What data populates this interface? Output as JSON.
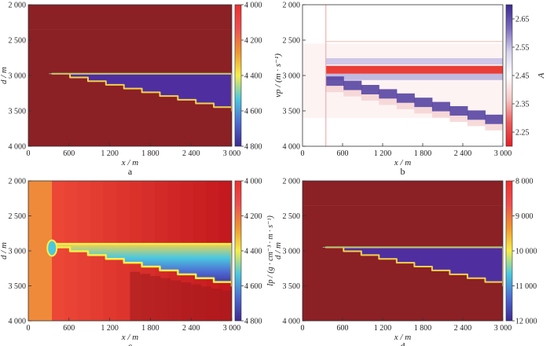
{
  "chart_data": [
    {
      "type": "heatmap",
      "panel_label": "a",
      "xlabel": "x / m",
      "ylabel": "d / m",
      "colorbar_label": "",
      "xlim": [
        0,
        3000
      ],
      "ylim": [
        4000,
        2000
      ],
      "x_ticks": [
        "600",
        "1 200",
        "1 800",
        "2 400",
        "3 000"
      ],
      "x_tick_values": [
        600,
        1200,
        1800,
        2400,
        3000
      ],
      "y_ticks": [
        "2 000",
        "2 500",
        "3 000",
        "3 500",
        "4 000"
      ],
      "y_tick_values": [
        2000,
        2500,
        3000,
        3500,
        4000
      ],
      "colorbar_ticks": [
        "4 000",
        "4 200",
        "4 400",
        "4 600",
        "4 800"
      ],
      "colorbar_range": [
        4000,
        4800
      ],
      "colormap": [
        "#ef2f2f",
        "#ef4f4f",
        "#f0962f",
        "#f7ee48",
        "#4bc8e0",
        "#4d6bd2",
        "#3d2a91"
      ],
      "background_color": "#8b2025",
      "wedge_color": "#4f2fa0",
      "wedge_top_depth": 2975,
      "wedge_start_x": 350,
      "wedge_end_x": 3000,
      "wedge_bottom_end_depth": 3500,
      "step_count": 10
    },
    {
      "type": "heatmap",
      "panel_label": "b",
      "xlabel": "x / m",
      "ylabel": "vp / (m · s⁻¹)",
      "colorbar_label": "A",
      "xlim": [
        0,
        3000
      ],
      "ylim": [
        4000,
        2000
      ],
      "x_ticks": [
        "600",
        "1 200",
        "1 800",
        "2 400",
        "3 000"
      ],
      "x_tick_values": [
        600,
        1200,
        1800,
        2400,
        3000
      ],
      "y_ticks": [
        "2 000",
        "2 500",
        "3 000",
        "3 500",
        "4 000"
      ],
      "y_tick_values": [
        2000,
        2500,
        3000,
        3500,
        4000
      ],
      "colorbar_ticks": [
        "2.65",
        "2.55",
        "2.45",
        "2.35",
        "2.25"
      ],
      "colorbar_tick_values": [
        2.65,
        2.55,
        2.45,
        2.35,
        2.25
      ],
      "colorbar_range": [
        2.2,
        2.7
      ],
      "colormap": [
        "#3d2a91",
        "#7a6bbd",
        "#d8d4ee",
        "#ffffff",
        "#f7c9c9",
        "#ef5a5a",
        "#e31f26"
      ],
      "background_color": "#ffffff",
      "wedge_top_depth": 2900,
      "wedge_start_x": 350,
      "wedge_end_x": 3000,
      "wedge_bottom_end_depth": 3500,
      "step_count": 10
    },
    {
      "type": "heatmap",
      "panel_label": "c",
      "xlabel": "x / m",
      "ylabel": "d / m",
      "colorbar_label": "Ip / (g · cm⁻³ · m · s⁻¹)",
      "xlim": [
        0,
        3000
      ],
      "ylim": [
        4000,
        2000
      ],
      "x_ticks": [
        "600",
        "1 200",
        "1 800",
        "2 400",
        "3 000"
      ],
      "x_tick_values": [
        600,
        1200,
        1800,
        2400,
        3000
      ],
      "y_ticks": [
        "2 000",
        "2 500",
        "3 000",
        "3 500",
        "4 000"
      ],
      "y_tick_values": [
        2000,
        2500,
        3000,
        3500,
        4000
      ],
      "colorbar_ticks": [
        "4 000",
        "4 200",
        "4 400",
        "4 600",
        "4 800"
      ],
      "colorbar_range": [
        4000,
        4800
      ],
      "colormap": [
        "#ef2f2f",
        "#ef4f4f",
        "#f0962f",
        "#f7ee48",
        "#4bc8e0",
        "#4d6bd2",
        "#3d2a91"
      ],
      "background_color": "#e8442a",
      "wedge_top_depth": 2950,
      "wedge_start_x": 350,
      "wedge_end_x": 3000,
      "wedge_bottom_end_depth": 3500,
      "step_count": 10
    },
    {
      "type": "heatmap",
      "panel_label": "d",
      "xlabel": "x / m",
      "ylabel": "d / m",
      "colorbar_label": "",
      "xlim": [
        0,
        3000
      ],
      "ylim": [
        4000,
        2000
      ],
      "x_ticks": [
        "600",
        "1 200",
        "1 800",
        "2 400",
        "3 000"
      ],
      "x_tick_values": [
        600,
        1200,
        1800,
        2400,
        3000
      ],
      "y_ticks": [
        "2 000",
        "2 500",
        "3 000",
        "3 500",
        "4 000"
      ],
      "y_tick_values": [
        2000,
        2500,
        3000,
        3500,
        4000
      ],
      "colorbar_ticks": [
        "8 000",
        "9 000",
        "10 000",
        "11 000",
        "12 000"
      ],
      "colorbar_range": [
        8000,
        12000
      ],
      "colormap": [
        "#ef2f2f",
        "#ef4f4f",
        "#f0962f",
        "#f7ee48",
        "#4bc8e0",
        "#4d6bd2",
        "#3d2a91"
      ],
      "background_color": "#8b2025",
      "wedge_color": "#4f2fa0",
      "wedge_top_depth": 2950,
      "wedge_start_x": 350,
      "wedge_end_x": 3000,
      "wedge_bottom_end_depth": 3500,
      "step_count": 10
    }
  ]
}
